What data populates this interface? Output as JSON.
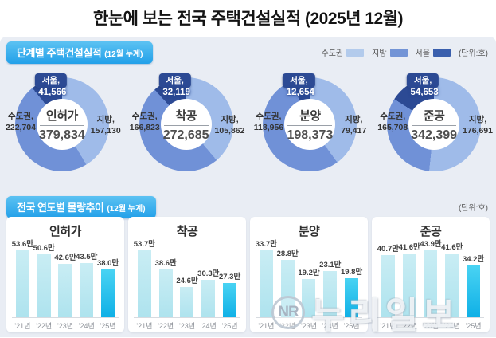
{
  "title": "한눈에 보는 전국 주택건설실적 (2025년 12월)",
  "section1": {
    "label": "단계별 주택건설실적",
    "sub": "(12월 누계)",
    "unit": "(단위:호)",
    "legend": [
      {
        "label": "수도권",
        "color": "#b3cbec"
      },
      {
        "label": "지방",
        "color": "#7394d6"
      },
      {
        "label": "서울",
        "color": "#3a5fad"
      }
    ]
  },
  "donuts": [
    {
      "name": "인허가",
      "total": "379,834",
      "total_val": 379834,
      "metro_label": "수도권,",
      "metro": "222,704",
      "metro_val": 222704,
      "local_label": "지방,",
      "local": "157,130",
      "local_val": 157130,
      "seoul_label": "서울,",
      "seoul": "41,566",
      "seoul_val": 41566
    },
    {
      "name": "착공",
      "total": "272,685",
      "total_val": 272685,
      "metro_label": "수도권,",
      "metro": "166,823",
      "metro_val": 166823,
      "local_label": "지방,",
      "local": "105,862",
      "local_val": 105862,
      "seoul_label": "서울,",
      "seoul": "32,119",
      "seoul_val": 32119
    },
    {
      "name": "분양",
      "total": "198,373",
      "total_val": 198373,
      "metro_label": "수도권,",
      "metro": "118,956",
      "metro_val": 118956,
      "local_label": "지방,",
      "local": "79,417",
      "local_val": 79417,
      "seoul_label": "서울,",
      "seoul": "12,654",
      "seoul_val": 12654
    },
    {
      "name": "준공",
      "total": "342,399",
      "total_val": 342399,
      "metro_label": "수도권,",
      "metro": "165,708",
      "metro_val": 165708,
      "local_label": "지방,",
      "local": "176,691",
      "local_val": 176691,
      "seoul_label": "서울,",
      "seoul": "54,653",
      "seoul_val": 54653
    }
  ],
  "section2": {
    "label": "전국 연도별 물량추이",
    "sub": "(12월 누계)",
    "unit": "(단위:호)"
  },
  "chart_data": [
    {
      "type": "bar",
      "title": "인허가",
      "categories": [
        "'21년",
        "'22년",
        "'23년",
        "'24년",
        "'25년"
      ],
      "values": [
        53.6,
        50.6,
        42.6,
        43.5,
        38.0
      ],
      "value_labels": [
        "53.6만",
        "50.6만",
        "42.6만",
        "43.5만",
        "38.0만"
      ],
      "highlight_index": 4,
      "ylabel": "만호",
      "legend_position": "none",
      "grid": false
    },
    {
      "type": "bar",
      "title": "착공",
      "categories": [
        "'21년",
        "'22년",
        "'23년",
        "'24년",
        "'25년"
      ],
      "values": [
        53.7,
        38.6,
        24.6,
        30.3,
        27.3
      ],
      "value_labels": [
        "53.7만",
        "38.6만",
        "24.6만",
        "30.3만",
        "27.3만"
      ],
      "highlight_index": 4,
      "ylabel": "만호",
      "legend_position": "none",
      "grid": false
    },
    {
      "type": "bar",
      "title": "분양",
      "categories": [
        "'21년",
        "'22년",
        "'23년",
        "'24년",
        "'25년"
      ],
      "values": [
        33.7,
        28.8,
        19.2,
        23.1,
        19.8
      ],
      "value_labels": [
        "33.7만",
        "28.8만",
        "19.2만",
        "23.1만",
        "19.8만"
      ],
      "highlight_index": 4,
      "ylabel": "만호",
      "legend_position": "none",
      "grid": false
    },
    {
      "type": "bar",
      "title": "준공",
      "categories": [
        "'21년",
        "'22년",
        "'23년",
        "'24년",
        "'25년"
      ],
      "values": [
        40.7,
        41.6,
        43.9,
        41.6,
        34.2
      ],
      "value_labels": [
        "40.7만",
        "41.6만",
        "43.9만",
        "41.6만",
        "34.2만"
      ],
      "highlight_index": 4,
      "ylabel": "만호",
      "legend_position": "none",
      "grid": false
    }
  ],
  "donut_colors": {
    "metro": "#7091d7",
    "local": "#9fbbe9",
    "seoul": "#2c4a94"
  },
  "watermark": {
    "logo": "NR",
    "text": "누리일보"
  }
}
